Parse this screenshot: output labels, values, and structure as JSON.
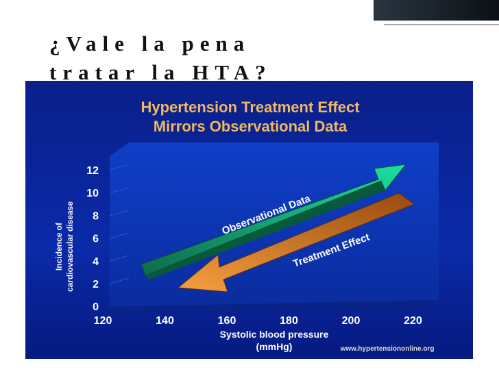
{
  "slide": {
    "title": [
      "¿Vale la pena",
      "tratar la HTA?"
    ]
  },
  "figure": {
    "title": [
      "Hypertension Treatment Effect",
      "Mirrors Observational Data"
    ],
    "y_label": [
      "Incidence of",
      "cardiovascular disease"
    ],
    "x_label": [
      "Systolic blood pressure",
      "(mmHg)"
    ],
    "yticks": [
      12,
      10,
      8,
      6,
      4,
      2,
      0
    ],
    "xticks": [
      120,
      140,
      160,
      180,
      200,
      220
    ],
    "arrows": [
      "Observational Data",
      "Treatment Effect"
    ],
    "source": "www.hypertensiononline.org"
  }
}
